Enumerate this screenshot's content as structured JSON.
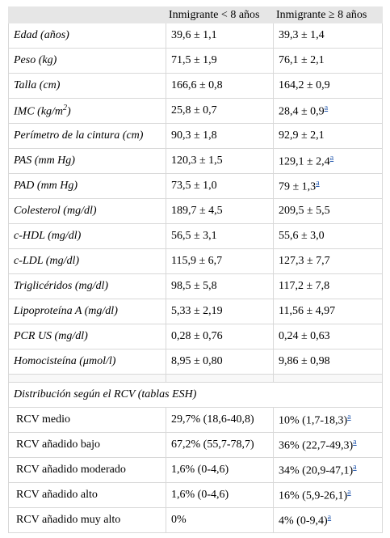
{
  "table": {
    "header": [
      "",
      "Inmigrante < 8 años",
      "Inmigrante ≥ 8 años"
    ],
    "rows": [
      {
        "label": "Edad (años)",
        "c1": "39,6 ± 1,1",
        "c2": "39,3 ± 1,4"
      },
      {
        "label": "Peso (kg)",
        "c1": "71,5 ± 1,9",
        "c2": "76,1 ± 2,1"
      },
      {
        "label": "Talla (cm)",
        "c1": "166,6 ± 0,8",
        "c2": "164,2 ± 0,9"
      },
      {
        "label": "IMC (kg/m",
        "label_sup": "2",
        "label_end": ")",
        "c1": "25,8 ± 0,7",
        "c2": "28,4 ± 0,9",
        "c2_sup": "a"
      },
      {
        "label": "Perímetro de la cintura (cm)",
        "c1": "90,3 ± 1,8",
        "c2": "92,9 ± 2,1"
      },
      {
        "label": "PAS (mm Hg)",
        "c1": "120,3 ± 1,5",
        "c2": "129,1 ± 2,4",
        "c2_sup": "a"
      },
      {
        "label": "PAD (mm Hg)",
        "c1": "73,5 ± 1,0",
        "c2": "79 ± 1,3",
        "c2_sup": "a"
      },
      {
        "label": "Colesterol (mg/dl)",
        "c1": "189,7 ± 4,5",
        "c2": "209,5 ± 5,5"
      },
      {
        "label": "c-HDL (mg/dl)",
        "c1": "56,5 ± 3,1",
        "c2": "55,6 ± 3,0"
      },
      {
        "label": "c-LDL (mg/dl)",
        "c1": "115,9 ± 6,7",
        "c2": "127,3 ± 7,7"
      },
      {
        "label": "Triglicéridos (mg/dl)",
        "c1": "98,5 ± 5,8",
        "c2": "117,2 ± 7,8"
      },
      {
        "label": "Lipoproteína A (mg/dl)",
        "c1": "5,33 ± 2,19",
        "c2": "11,56 ± 4,97"
      },
      {
        "label": "PCR US (mg/dl)",
        "c1": "0,28 ± 0,76",
        "c2": "0,24 ± 0,63"
      },
      {
        "label": "Homocisteína (μmol/l)",
        "c1": "8,95 ± 0,80",
        "c2": "9,86 ± 0,98"
      }
    ],
    "section_title": "Distribución según el RCV (tablas ESH)",
    "section_rows": [
      {
        "label": "RCV medio",
        "c1": "29,7% (18,6-40,8)",
        "c2": "10% (1,7-18,3)",
        "c2_sup": "a"
      },
      {
        "label": "RCV añadido bajo",
        "c1": "67,2% (55,7-78,7)",
        "c2": "36% (22,7-49,3)",
        "c2_sup": "a"
      },
      {
        "label": "RCV añadido moderado",
        "c1": "1,6% (0-4,6)",
        "c2": "34% (20,9-47,1)",
        "c2_sup": "a"
      },
      {
        "label": "RCV añadido alto",
        "c1": "1,6% (0-4,6)",
        "c2": "16% (5,9-26,1)",
        "c2_sup": "a"
      },
      {
        "label": "RCV añadido muy alto",
        "c1": "0%",
        "c2": "4% (0-9,4)",
        "c2_sup": "a"
      }
    ]
  }
}
